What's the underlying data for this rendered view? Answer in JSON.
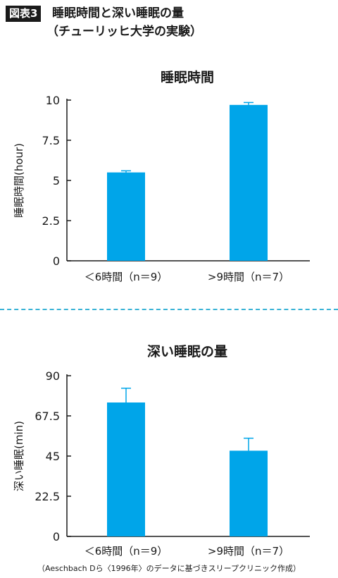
{
  "header": {
    "badge": "図表3",
    "title_line1": "睡眠時間と深い睡眠の量",
    "title_line2": "（チューリッヒ大学の実験）"
  },
  "footnote": "（Aeschbach Dら〈1996年〉のデータに基づきスリープクリニック作成）",
  "colors": {
    "bar": "#00a5e9",
    "axis": "#1a1a1a",
    "divider": "#3ab3d6"
  },
  "chart_data": [
    {
      "type": "bar",
      "title": "睡眠時間",
      "ylabel": "睡眠時間(hour)",
      "xlabel": "",
      "categories": [
        "＜6時間（n＝9）",
        ">9時間（n＝7）"
      ],
      "values": [
        5.5,
        9.7
      ],
      "error_upper": [
        5.6,
        9.85
      ],
      "ylim": [
        0,
        10
      ],
      "yticks": [
        0,
        2.5,
        5,
        7.5,
        10
      ],
      "ytick_labels": [
        "0",
        "2.5",
        "5",
        "7.5",
        "10"
      ],
      "grid": false
    },
    {
      "type": "bar",
      "title": "深い睡眠の量",
      "ylabel": "深い睡眠(min)",
      "xlabel": "",
      "categories": [
        "＜6時間（n＝9）",
        ">9時間（n＝7）"
      ],
      "values": [
        75,
        48
      ],
      "error_upper": [
        83,
        55
      ],
      "ylim": [
        0,
        90
      ],
      "yticks": [
        0,
        22.5,
        45,
        67.5,
        90
      ],
      "ytick_labels": [
        "0",
        "22.5",
        "45",
        "67.5",
        "90"
      ],
      "grid": false
    }
  ]
}
